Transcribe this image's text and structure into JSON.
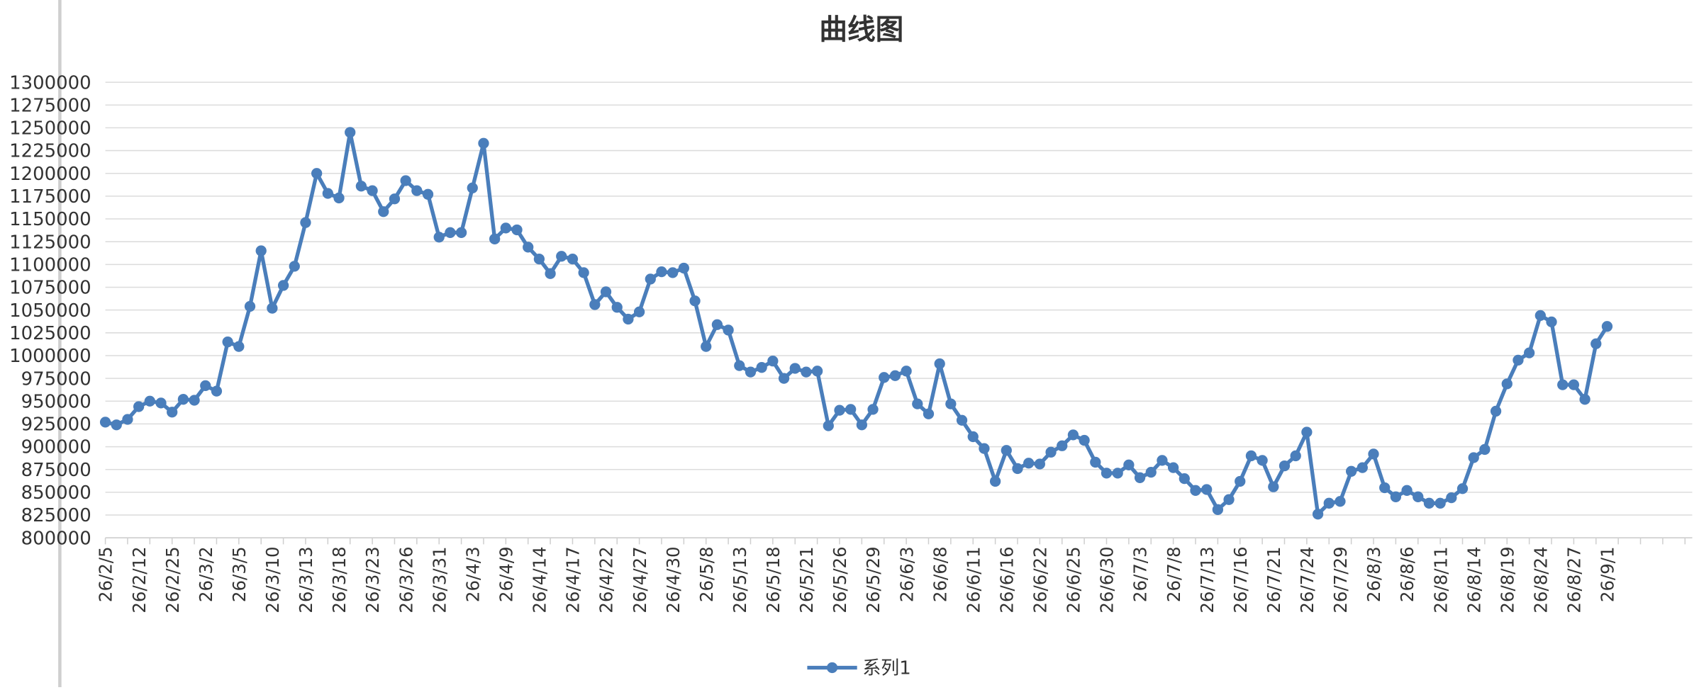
{
  "chart_data": {
    "type": "line",
    "title": "曲线图",
    "categories": [
      "26/2/5",
      null,
      null,
      "26/2/12",
      null,
      null,
      "26/2/25",
      null,
      null,
      "26/3/2",
      null,
      null,
      "26/3/5",
      null,
      null,
      "26/3/10",
      null,
      null,
      "26/3/13",
      null,
      null,
      "26/3/18",
      null,
      null,
      "26/3/23",
      null,
      null,
      "26/3/26",
      null,
      null,
      "26/3/31",
      null,
      null,
      "26/4/3",
      null,
      null,
      "26/4/9",
      null,
      null,
      "26/4/14",
      null,
      null,
      "26/4/17",
      null,
      null,
      "26/4/22",
      null,
      null,
      "26/4/27",
      null,
      null,
      "26/4/30",
      null,
      null,
      "26/5/8",
      null,
      null,
      "26/5/13",
      null,
      null,
      "26/5/18",
      null,
      null,
      "26/5/21",
      null,
      null,
      "26/5/26",
      null,
      null,
      "26/5/29",
      null,
      null,
      "26/6/3",
      null,
      null,
      "26/6/8",
      null,
      null,
      "26/6/11",
      null,
      null,
      "26/6/16",
      null,
      null,
      "26/6/22",
      null,
      null,
      "26/6/25",
      null,
      null,
      "26/6/30",
      null,
      null,
      "26/7/3",
      null,
      null,
      "26/7/8",
      null,
      null,
      "26/7/13",
      null,
      null,
      "26/7/16",
      null,
      null,
      "26/7/21",
      null,
      null,
      "26/7/24",
      null,
      null,
      "26/7/29",
      null,
      null,
      "26/8/3",
      null,
      null,
      "26/8/6",
      null,
      null,
      "26/8/11",
      null,
      null,
      "26/8/14",
      null,
      null,
      "26/8/19",
      null,
      null,
      "26/8/24",
      null,
      null,
      "26/8/27",
      null,
      null,
      "26/9/1"
    ],
    "series": [
      {
        "name": "系列1",
        "color": "#4a7ebb",
        "values": [
          927000,
          924000,
          930000,
          944000,
          950000,
          948000,
          938000,
          952000,
          951000,
          967000,
          961000,
          1015000,
          1010000,
          1054000,
          1115000,
          1052000,
          1077000,
          1098000,
          1146000,
          1200000,
          1178000,
          1173000,
          1245000,
          1186000,
          1181000,
          1158000,
          1172000,
          1192000,
          1181000,
          1177000,
          1130000,
          1135000,
          1135000,
          1184000,
          1233000,
          1128000,
          1140000,
          1138000,
          1119000,
          1106000,
          1090000,
          1109000,
          1106000,
          1091000,
          1056000,
          1070000,
          1053000,
          1040000,
          1048000,
          1084000,
          1092000,
          1091000,
          1096000,
          1060000,
          1010000,
          1034000,
          1028000,
          989000,
          982000,
          987000,
          994000,
          975000,
          986000,
          982000,
          983000,
          923000,
          940000,
          941000,
          924000,
          941000,
          976000,
          978000,
          983000,
          947000,
          936000,
          991000,
          947000,
          929000,
          911000,
          898000,
          862000,
          896000,
          876000,
          882000,
          881000,
          894000,
          901000,
          913000,
          907000,
          883000,
          871000,
          871000,
          880000,
          866000,
          872000,
          885000,
          877000,
          865000,
          852000,
          853000,
          831000,
          842000,
          862000,
          890000,
          885000,
          856000,
          879000,
          890000,
          916000,
          826000,
          838000,
          840000,
          873000,
          877000,
          892000,
          855000,
          845000,
          852000,
          845000,
          838000,
          838000,
          844000,
          854000,
          888000,
          897000,
          939000,
          969000,
          995000,
          1003000,
          1044000,
          1037000,
          968000,
          968000,
          952000,
          1013000,
          1032000
        ]
      }
    ],
    "ylim": [
      800000,
      1300000
    ],
    "yticks": [
      800000,
      825000,
      850000,
      875000,
      900000,
      925000,
      950000,
      975000,
      1000000,
      1025000,
      1050000,
      1075000,
      1100000,
      1125000,
      1150000,
      1175000,
      1200000,
      1225000,
      1250000,
      1275000,
      1300000
    ],
    "grid": true,
    "legend": "bottom"
  }
}
